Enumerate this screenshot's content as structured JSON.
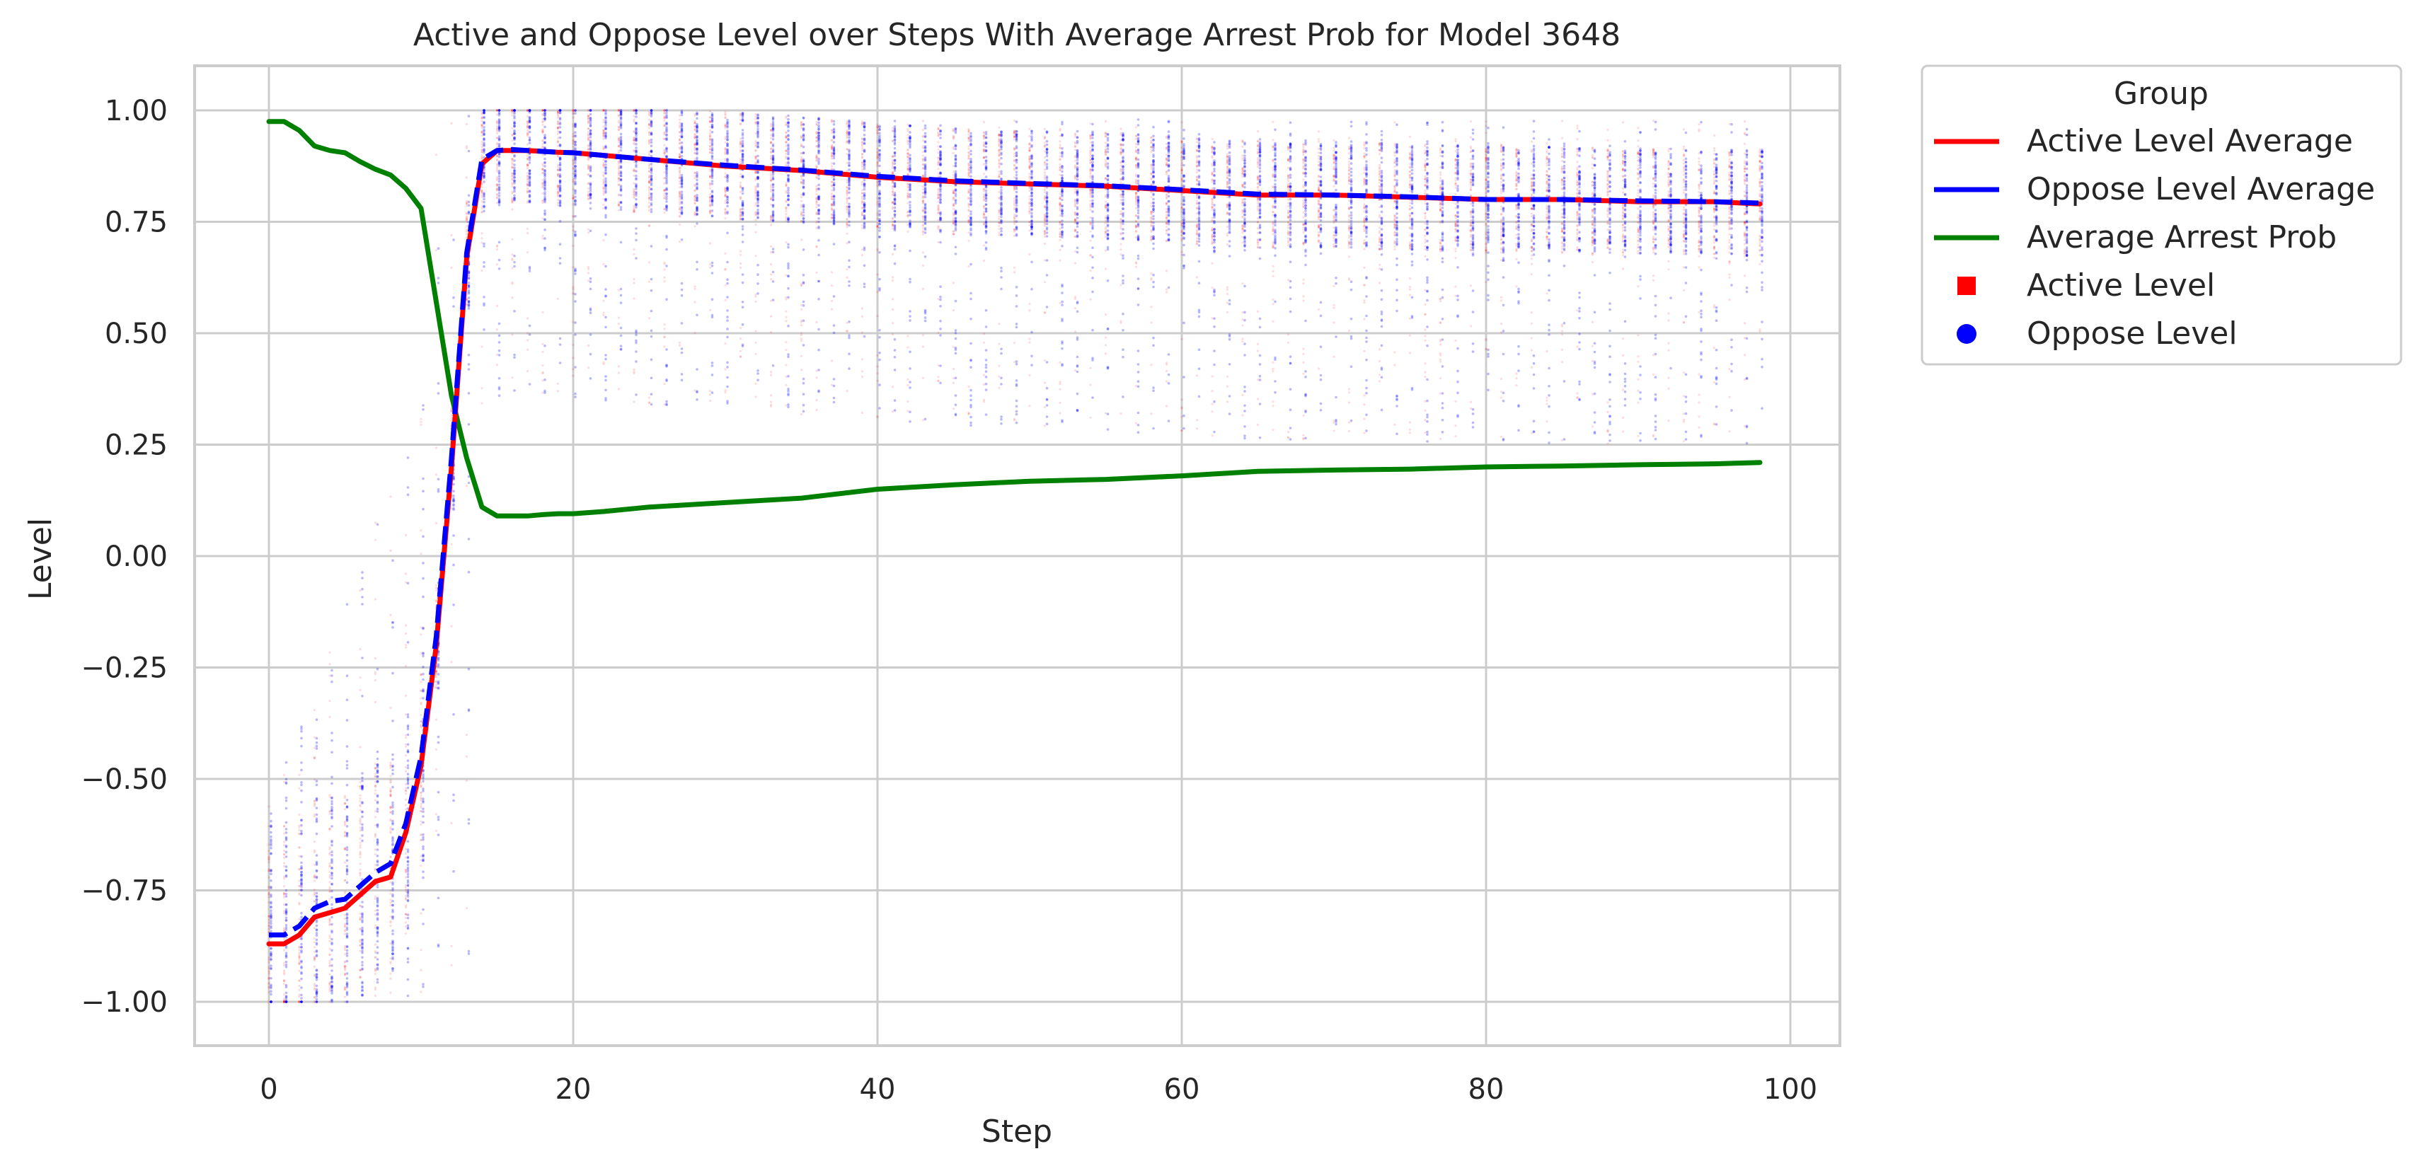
{
  "chart_data": {
    "type": "line",
    "title": "Active and Oppose Level over Steps With Average Arrest Prob for Model 3648",
    "xlabel": "Step",
    "ylabel": "Level",
    "xlim": [
      -5,
      103
    ],
    "ylim": [
      -1.1,
      1.1
    ],
    "x_ticks": [
      0,
      20,
      40,
      60,
      80,
      100
    ],
    "y_ticks": [
      -1.0,
      -0.75,
      -0.5,
      -0.25,
      0.0,
      0.25,
      0.5,
      0.75,
      1.0
    ],
    "x_tick_labels": [
      "0",
      "20",
      "40",
      "60",
      "80",
      "100"
    ],
    "y_tick_labels": [
      "−1.00",
      "−0.75",
      "−0.50",
      "−0.25",
      "0.00",
      "0.25",
      "0.50",
      "0.75",
      "1.00"
    ],
    "grid": true,
    "legend": {
      "title": "Group",
      "position": "outside right, top",
      "entries": [
        {
          "label": "Active Level Average",
          "marker": "line",
          "color": "#ff0000"
        },
        {
          "label": "Oppose Level Average",
          "marker": "line",
          "color": "#0000ff"
        },
        {
          "label": "Average Arrest Prob",
          "marker": "line",
          "color": "#008000"
        },
        {
          "label": "Active Level",
          "marker": "square",
          "color": "#ff0000"
        },
        {
          "label": "Oppose Level",
          "marker": "circle",
          "color": "#0000ff"
        }
      ]
    },
    "series": [
      {
        "name": "Active Level Average",
        "color": "#ff0000",
        "style": "solid",
        "x": [
          0,
          1,
          2,
          3,
          4,
          5,
          6,
          7,
          8,
          9,
          10,
          11,
          12,
          13,
          14,
          15,
          16,
          17,
          18,
          19,
          20,
          25,
          30,
          35,
          40,
          45,
          50,
          55,
          60,
          65,
          70,
          75,
          80,
          85,
          90,
          95,
          98
        ],
        "y": [
          -0.87,
          -0.87,
          -0.85,
          -0.81,
          -0.8,
          -0.79,
          -0.76,
          -0.73,
          -0.72,
          -0.62,
          -0.47,
          -0.2,
          0.2,
          0.67,
          0.88,
          0.91,
          0.91,
          0.91,
          0.908,
          0.906,
          0.905,
          0.89,
          0.875,
          0.865,
          0.85,
          0.84,
          0.835,
          0.83,
          0.82,
          0.81,
          0.81,
          0.805,
          0.8,
          0.8,
          0.795,
          0.795,
          0.79
        ]
      },
      {
        "name": "Oppose Level Average",
        "color": "#0000ff",
        "style": "dashed",
        "x": [
          0,
          1,
          2,
          3,
          4,
          5,
          6,
          7,
          8,
          9,
          10,
          11,
          12,
          13,
          14,
          15,
          16,
          17,
          18,
          19,
          20,
          25,
          30,
          35,
          40,
          45,
          50,
          55,
          60,
          65,
          70,
          75,
          80,
          85,
          90,
          95,
          98
        ],
        "y": [
          -0.85,
          -0.85,
          -0.83,
          -0.79,
          -0.775,
          -0.77,
          -0.74,
          -0.71,
          -0.69,
          -0.6,
          -0.45,
          -0.18,
          0.22,
          0.68,
          0.89,
          0.91,
          0.912,
          0.91,
          0.908,
          0.906,
          0.905,
          0.89,
          0.877,
          0.866,
          0.852,
          0.842,
          0.836,
          0.831,
          0.822,
          0.812,
          0.81,
          0.806,
          0.8,
          0.8,
          0.797,
          0.795,
          0.792
        ]
      },
      {
        "name": "Average Arrest Prob",
        "color": "#008000",
        "style": "solid",
        "x": [
          0,
          1,
          2,
          3,
          4,
          5,
          6,
          7,
          8,
          9,
          10,
          11,
          12,
          13,
          14,
          15,
          16,
          17,
          18,
          19,
          20,
          22,
          25,
          30,
          35,
          40,
          45,
          50,
          55,
          60,
          65,
          70,
          75,
          80,
          85,
          90,
          95,
          98
        ],
        "y": [
          0.975,
          0.975,
          0.955,
          0.92,
          0.91,
          0.905,
          0.885,
          0.868,
          0.855,
          0.825,
          0.78,
          0.57,
          0.36,
          0.22,
          0.11,
          0.09,
          0.09,
          0.09,
          0.093,
          0.095,
          0.095,
          0.1,
          0.11,
          0.12,
          0.13,
          0.15,
          0.16,
          0.168,
          0.172,
          0.18,
          0.19,
          0.193,
          0.195,
          0.2,
          0.202,
          0.205,
          0.207,
          0.21
        ]
      }
    ],
    "scatter_groups": [
      {
        "name": "Active Level",
        "color": "#ff0000",
        "marker": "square"
      },
      {
        "name": "Oppose Level",
        "color": "#0000ff",
        "marker": "circle"
      }
    ]
  }
}
